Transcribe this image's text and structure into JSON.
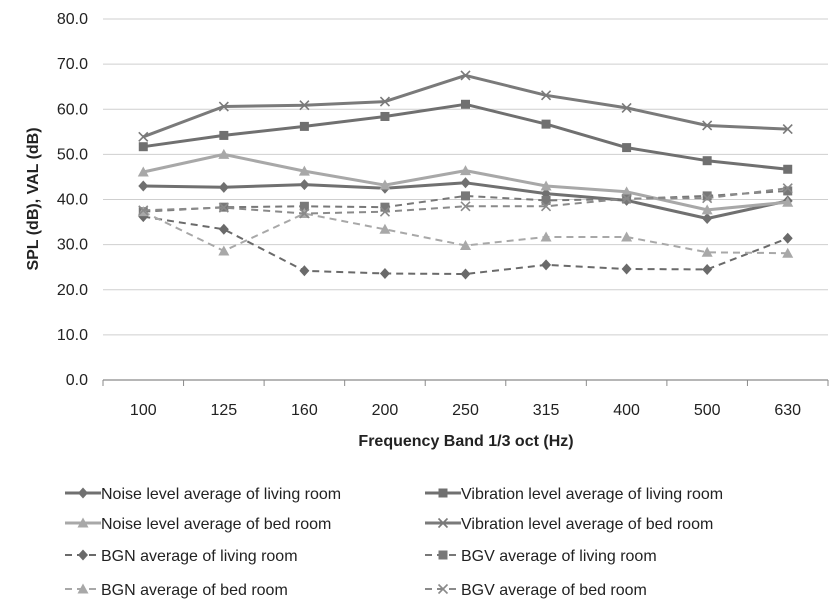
{
  "chart_data": {
    "type": "line",
    "title": "",
    "xlabel": "Frequency Band 1/3 oct (Hz)",
    "ylabel": "SPL (dB), VAL (dB)",
    "categories": [
      "100",
      "125",
      "160",
      "200",
      "250",
      "315",
      "400",
      "500",
      "630"
    ],
    "ylim": [
      0,
      80
    ],
    "yticks": [
      "0.0",
      "10.0",
      "20.0",
      "30.0",
      "40.0",
      "50.0",
      "60.0",
      "70.0",
      "80.0"
    ],
    "ytick_values": [
      0,
      10,
      20,
      30,
      40,
      50,
      60,
      70,
      80
    ],
    "grid": true,
    "legend_position": "bottom",
    "series": [
      {
        "name": "Noise level average of living room",
        "values": [
          43.0,
          42.7,
          43.3,
          42.5,
          43.7,
          41.3,
          39.8,
          35.8,
          39.7
        ],
        "color": "#707070",
        "dash": "solid",
        "marker": "diamond"
      },
      {
        "name": "Vibration level average of living room",
        "values": [
          51.7,
          54.2,
          56.2,
          58.4,
          61.1,
          56.7,
          51.5,
          48.6,
          46.7
        ],
        "color": "#707070",
        "dash": "solid",
        "marker": "square"
      },
      {
        "name": "Noise level average of bed room",
        "values": [
          46.1,
          50.0,
          46.3,
          43.2,
          46.4,
          43.0,
          41.7,
          37.7,
          39.4
        ],
        "color": "#a8a8a8",
        "dash": "solid",
        "marker": "triangle"
      },
      {
        "name": "Vibration level average of bed room",
        "values": [
          53.9,
          60.6,
          60.9,
          61.7,
          67.5,
          63.1,
          60.3,
          56.4,
          55.6
        ],
        "color": "#7a7a7a",
        "dash": "solid",
        "marker": "x"
      },
      {
        "name": "BGN average of living room",
        "values": [
          36.2,
          33.4,
          24.2,
          23.6,
          23.5,
          25.5,
          24.6,
          24.5,
          31.4
        ],
        "color": "#6a6a6a",
        "dash": "dashed",
        "marker": "diamond"
      },
      {
        "name": "BGV average of living room",
        "values": [
          37.3,
          38.3,
          38.5,
          38.3,
          40.8,
          39.8,
          40.1,
          40.8,
          41.9
        ],
        "color": "#787878",
        "dash": "dashed",
        "marker": "square"
      },
      {
        "name": "BGN average of bed room",
        "values": [
          37.3,
          28.6,
          36.9,
          33.4,
          29.8,
          31.7,
          31.7,
          28.3,
          28.1
        ],
        "color": "#a8a8a8",
        "dash": "dashed",
        "marker": "triangle"
      },
      {
        "name": "BGV average of bed room",
        "values": [
          37.6,
          38.2,
          36.9,
          37.3,
          38.5,
          38.5,
          40.2,
          40.3,
          42.5
        ],
        "color": "#8a8a8a",
        "dash": "dashed",
        "marker": "x"
      }
    ]
  }
}
